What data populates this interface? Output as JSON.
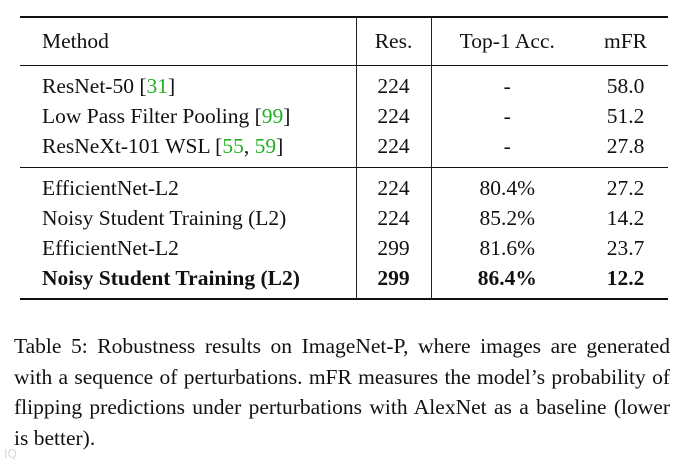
{
  "table": {
    "headers": {
      "method": "Method",
      "res": "Res.",
      "top1": "Top-1 Acc.",
      "mfr": "mFR"
    },
    "group1": [
      {
        "method": "ResNet-50 [",
        "cites": [
          "31"
        ],
        "seps": [],
        "close": "]",
        "res": "224",
        "top1": "-",
        "mfr": "58.0"
      },
      {
        "method": "Low Pass Filter Pooling [",
        "cites": [
          "99"
        ],
        "seps": [],
        "close": "]",
        "res": "224",
        "top1": "-",
        "mfr": "51.2"
      },
      {
        "method": "ResNeXt-101 WSL [",
        "cites": [
          "55",
          "59"
        ],
        "seps": [
          ", "
        ],
        "close": "]",
        "res": "224",
        "top1": "-",
        "mfr": "27.8"
      }
    ],
    "group2": [
      {
        "method": "EfficientNet-L2",
        "res": "224",
        "top1": "80.4%",
        "mfr": "27.2"
      },
      {
        "method": "Noisy Student Training (L2)",
        "res": "224",
        "top1": "85.2%",
        "mfr": "14.2"
      },
      {
        "method": "EfficientNet-L2",
        "res": "299",
        "top1": "81.6%",
        "mfr": "23.7"
      },
      {
        "method": "Noisy Student Training (L2)",
        "res": "299",
        "top1": "86.4%",
        "mfr": "12.2"
      }
    ]
  },
  "caption": "Table 5: Robustness results on ImageNet-P, where images are generated with a sequence of perturbations. mFR measures the model’s probability of flipping predictions under perturbations with AlexNet as a baseline (lower is better).",
  "colors": {
    "citation": "#22b022",
    "rule": "#111111"
  }
}
